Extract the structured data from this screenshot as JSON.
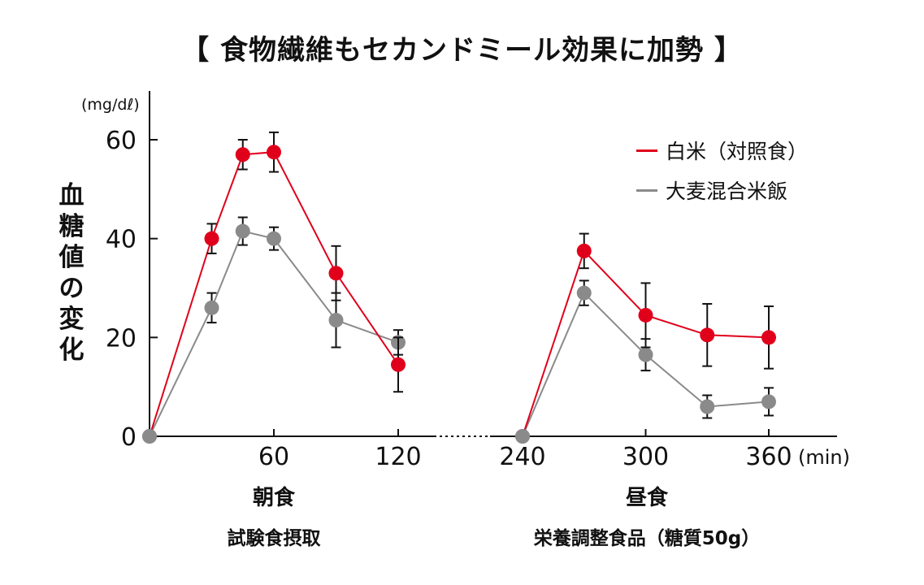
{
  "title": "【 食物繊維もセカンドミール効果に加勢 】",
  "colors": {
    "white_rice": "#e0001b",
    "barley": "#8a8a8a",
    "axis": "#111111"
  },
  "chart_data": {
    "type": "line",
    "ylabel_unit": "(mg/dℓ)",
    "ylabel": "血糖値の変化",
    "xlabel_unit": "(min)",
    "ylim": [
      0,
      60
    ],
    "y_ticks": [
      "0",
      "20",
      "40",
      "60"
    ],
    "x_ticks": [
      "60",
      "120",
      "240",
      "300",
      "360"
    ],
    "axis_break_between": [
      120,
      240
    ],
    "grid": false,
    "legend_position": "top-right",
    "series": [
      {
        "name": "白米（対照食）",
        "color": "#e0001b",
        "points": [
          {
            "x": 0,
            "y": 0,
            "err": 0
          },
          {
            "x": 30,
            "y": 40,
            "err": 3
          },
          {
            "x": 45,
            "y": 57,
            "err": 3
          },
          {
            "x": 60,
            "y": 57.5,
            "err": 4
          },
          {
            "x": 90,
            "y": 33,
            "err": 5.5
          },
          {
            "x": 120,
            "y": 14.5,
            "err": 5.5
          },
          {
            "x": 240,
            "y": 0,
            "err": 0
          },
          {
            "x": 270,
            "y": 37.5,
            "err": 3.5
          },
          {
            "x": 300,
            "y": 24.5,
            "err": 6.5
          },
          {
            "x": 330,
            "y": 20.5,
            "err": 6.3
          },
          {
            "x": 360,
            "y": 20,
            "err": 6.3
          }
        ]
      },
      {
        "name": "大麦混合米飯",
        "color": "#8a8a8a",
        "points": [
          {
            "x": 0,
            "y": 0,
            "err": 0
          },
          {
            "x": 30,
            "y": 26,
            "err": 3
          },
          {
            "x": 45,
            "y": 41.5,
            "err": 2.8
          },
          {
            "x": 60,
            "y": 40,
            "err": 2.3
          },
          {
            "x": 90,
            "y": 23.5,
            "err": 5.5
          },
          {
            "x": 120,
            "y": 19,
            "err": 2.5
          },
          {
            "x": 240,
            "y": 0,
            "err": 0
          },
          {
            "x": 270,
            "y": 29,
            "err": 2.5
          },
          {
            "x": 300,
            "y": 16.5,
            "err": 3.2
          },
          {
            "x": 330,
            "y": 6,
            "err": 2.3
          },
          {
            "x": 360,
            "y": 7,
            "err": 2.8
          }
        ]
      }
    ]
  },
  "meal_labels": {
    "breakfast_title": "朝食",
    "breakfast_note": "試験食摂取",
    "lunch_title": "昼食",
    "lunch_note": "栄養調整食品（糖質50g）"
  }
}
